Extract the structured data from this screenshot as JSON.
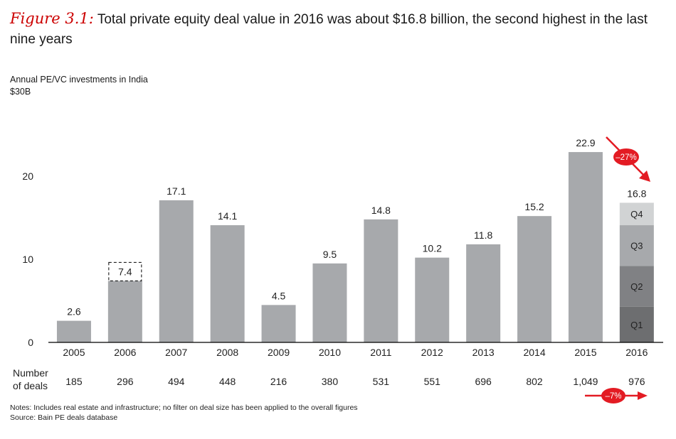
{
  "figure": {
    "label": "Figure 3.1:",
    "title": "Total private equity deal value in 2016 was about $16.8 billion, the second highest in the last nine years"
  },
  "chart_data": {
    "type": "bar",
    "title": "Annual PE/VC investments in India",
    "ylabel": "$30B",
    "yticks": [
      0,
      10,
      20
    ],
    "ylim": [
      0,
      30
    ],
    "categories": [
      "2005",
      "2006",
      "2007",
      "2008",
      "2009",
      "2010",
      "2011",
      "2012",
      "2013",
      "2014",
      "2015",
      "2016"
    ],
    "values": [
      2.6,
      7.4,
      17.1,
      14.1,
      4.5,
      9.5,
      14.8,
      10.2,
      11.8,
      15.2,
      22.9,
      16.8
    ],
    "value_labels": [
      "2.6",
      "7.4",
      "17.1",
      "14.1",
      "4.5",
      "9.5",
      "14.8",
      "10.2",
      "11.8",
      "15.2",
      "22.9",
      "16.8"
    ],
    "highlight_box_category": "2006",
    "stacked_2016": [
      {
        "name": "Q1",
        "value": 4.3,
        "color": "#6d6e70"
      },
      {
        "name": "Q2",
        "value": 4.9,
        "color": "#808184"
      },
      {
        "name": "Q3",
        "value": 4.9,
        "color": "#a7a9ac"
      },
      {
        "name": "Q4",
        "value": 2.7,
        "color": "#d1d3d4"
      }
    ],
    "deals_label": [
      "Number",
      "of deals"
    ],
    "deals": [
      "185",
      "296",
      "494",
      "448",
      "216",
      "380",
      "531",
      "551",
      "696",
      "802",
      "1,049",
      "976"
    ],
    "callouts": [
      {
        "text": "–27%",
        "context": "2015 to 2016 value"
      },
      {
        "text": "–7%",
        "context": "2015 to 2016 number of deals"
      }
    ],
    "colors": {
      "bar": "#a7a9ac",
      "accent": "#e31b23",
      "axis": "#000000"
    }
  },
  "notes": {
    "line1": "Notes: Includes real estate and infrastructure; no filter on deal size has been applied to the overall figures",
    "line2": "Source: Bain PE deals database"
  }
}
